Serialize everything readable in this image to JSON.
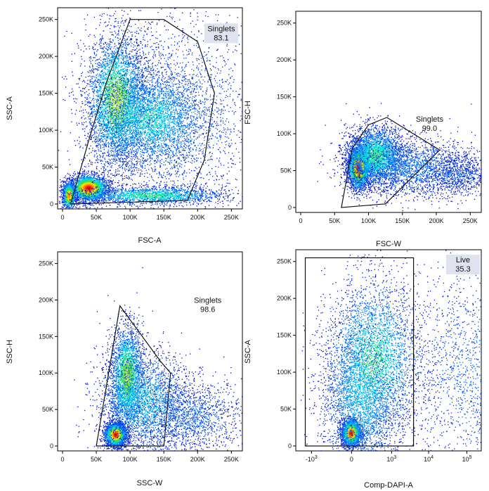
{
  "chart_data": [
    {
      "type": "scatter",
      "name": "FSC-A vs SSC-A",
      "xlabel": "FSC-A",
      "ylabel": "SSC-A",
      "xscale": "linear",
      "yscale": "linear",
      "xlim": [
        0,
        262144
      ],
      "ylim": [
        0,
        262144
      ],
      "xticks": [
        {
          "v": 0,
          "t": "0"
        },
        {
          "v": 50000,
          "t": "50K"
        },
        {
          "v": 100000,
          "t": "100K"
        },
        {
          "v": 150000,
          "t": "150K"
        },
        {
          "v": 200000,
          "t": "200K"
        },
        {
          "v": 250000,
          "t": "250K"
        }
      ],
      "yticks": [
        {
          "v": 0,
          "t": "0"
        },
        {
          "v": 50000,
          "t": "50K"
        },
        {
          "v": 100000,
          "t": "100K"
        },
        {
          "v": 150000,
          "t": "150K"
        },
        {
          "v": 200000,
          "t": "200K"
        },
        {
          "v": 250000,
          "t": "250K"
        }
      ],
      "gate": {
        "label": "Singlets",
        "value": "83.1",
        "label_box": true,
        "label_anchor": [
          235000,
          238000
        ],
        "polygon": [
          [
            12000,
            0
          ],
          [
            40000,
            90000
          ],
          [
            65000,
            165000
          ],
          [
            100000,
            250000
          ],
          [
            150000,
            250000
          ],
          [
            200000,
            220000
          ],
          [
            225000,
            150000
          ],
          [
            210000,
            60000
          ],
          [
            185000,
            5000
          ]
        ]
      },
      "populations": [
        {
          "x": 38000,
          "y": 22000,
          "sx": 14000,
          "sy": 9000,
          "n": 2600,
          "w": 1.0
        },
        {
          "x": 9000,
          "y": 12000,
          "sx": 5000,
          "sy": 9000,
          "n": 1000,
          "w": 0.9
        },
        {
          "x": 80000,
          "y": 140000,
          "sx": 22000,
          "sy": 45000,
          "n": 3800,
          "w": 0.7
        },
        {
          "x": 130000,
          "y": 115000,
          "sx": 38000,
          "sy": 32000,
          "n": 3000,
          "w": 0.5
        },
        {
          "x": 130000,
          "y": 12000,
          "sx": 55000,
          "sy": 6000,
          "n": 1800,
          "w": 0.55
        },
        {
          "x": 160000,
          "y": 120000,
          "sx": 65000,
          "sy": 70000,
          "n": 2600,
          "w": 0.25
        }
      ]
    },
    {
      "type": "scatter",
      "name": "FSC-W vs FSC-H",
      "xlabel": "FSC-W",
      "ylabel": "FSC-H",
      "xscale": "linear",
      "yscale": "linear",
      "xlim": [
        0,
        262144
      ],
      "ylim": [
        0,
        262144
      ],
      "xticks": [
        {
          "v": 0,
          "t": "0"
        },
        {
          "v": 50000,
          "t": "50K"
        },
        {
          "v": 100000,
          "t": "100K"
        },
        {
          "v": 150000,
          "t": "150K"
        },
        {
          "v": 200000,
          "t": "200K"
        },
        {
          "v": 250000,
          "t": "250K"
        }
      ],
      "yticks": [
        {
          "v": 0,
          "t": "0"
        },
        {
          "v": 50000,
          "t": "50K"
        },
        {
          "v": 100000,
          "t": "100K"
        },
        {
          "v": 150000,
          "t": "150K"
        },
        {
          "v": 200000,
          "t": "200K"
        },
        {
          "v": 250000,
          "t": "250K"
        }
      ],
      "gate": {
        "label": "Singlets",
        "value": "99.0",
        "label_box": false,
        "label_anchor": [
          190000,
          120000
        ],
        "polygon": [
          [
            60000,
            0
          ],
          [
            76000,
            80000
          ],
          [
            100000,
            112000
          ],
          [
            127000,
            122000
          ],
          [
            205000,
            78000
          ],
          [
            125000,
            5000
          ]
        ]
      },
      "populations": [
        {
          "x": 85000,
          "y": 55000,
          "sx": 8000,
          "sy": 15000,
          "n": 2600,
          "w": 1.0
        },
        {
          "x": 110000,
          "y": 70000,
          "sx": 22000,
          "sy": 20000,
          "n": 3000,
          "w": 0.55
        },
        {
          "x": 165000,
          "y": 55000,
          "sx": 45000,
          "sy": 20000,
          "n": 1800,
          "w": 0.25
        },
        {
          "x": 230000,
          "y": 45000,
          "sx": 25000,
          "sy": 15000,
          "n": 800,
          "w": 0.15
        }
      ]
    },
    {
      "type": "scatter",
      "name": "SSC-W vs SSC-H",
      "xlabel": "SSC-W",
      "ylabel": "SSC-H",
      "xscale": "linear",
      "yscale": "linear",
      "xlim": [
        0,
        262144
      ],
      "ylim": [
        0,
        262144
      ],
      "xticks": [
        {
          "v": 0,
          "t": "0"
        },
        {
          "v": 50000,
          "t": "50K"
        },
        {
          "v": 100000,
          "t": "100K"
        },
        {
          "v": 150000,
          "t": "150K"
        },
        {
          "v": 200000,
          "t": "200K"
        },
        {
          "v": 250000,
          "t": "250K"
        }
      ],
      "yticks": [
        {
          "v": 0,
          "t": "0"
        },
        {
          "v": 50000,
          "t": "50K"
        },
        {
          "v": 100000,
          "t": "100K"
        },
        {
          "v": 150000,
          "t": "150K"
        },
        {
          "v": 200000,
          "t": "200K"
        },
        {
          "v": 250000,
          "t": "250K"
        }
      ],
      "gate": {
        "label": "Singlets",
        "value": "98.6",
        "label_box": false,
        "label_anchor": [
          215000,
          200000
        ],
        "polygon": [
          [
            50000,
            0
          ],
          [
            85000,
            192000
          ],
          [
            145000,
            116000
          ],
          [
            160000,
            100000
          ],
          [
            150000,
            0
          ]
        ]
      },
      "populations": [
        {
          "x": 78000,
          "y": 16000,
          "sx": 8000,
          "sy": 8000,
          "n": 2400,
          "w": 1.0
        },
        {
          "x": 95000,
          "y": 95000,
          "sx": 12000,
          "sy": 35000,
          "n": 2600,
          "w": 0.7
        },
        {
          "x": 120000,
          "y": 60000,
          "sx": 35000,
          "sy": 35000,
          "n": 2600,
          "w": 0.4
        },
        {
          "x": 190000,
          "y": 40000,
          "sx": 40000,
          "sy": 25000,
          "n": 1400,
          "w": 0.2
        }
      ]
    },
    {
      "type": "scatter",
      "name": "Comp-DAPI-A vs SSC-A",
      "xlabel": "Comp-DAPI-A",
      "ylabel": "SSC-A",
      "xscale": "biexponential",
      "yscale": "linear",
      "xlim": [
        -2000,
        200000
      ],
      "ylim": [
        0,
        262144
      ],
      "xticks": [
        {
          "v": -1000,
          "t": "-10",
          "sup": "3"
        },
        {
          "v": 0,
          "t": "0"
        },
        {
          "v": 1000,
          "t": "10",
          "sup": "3"
        },
        {
          "v": 10000,
          "t": "10",
          "sup": "4"
        },
        {
          "v": 100000,
          "t": "10",
          "sup": "5"
        }
      ],
      "yticks": [
        {
          "v": 0,
          "t": "0"
        },
        {
          "v": 50000,
          "t": "50K"
        },
        {
          "v": 100000,
          "t": "100K"
        },
        {
          "v": 150000,
          "t": "150K"
        },
        {
          "v": 200000,
          "t": "200K"
        },
        {
          "v": 250000,
          "t": "250K"
        }
      ],
      "gate": {
        "label": "Live",
        "value": "35.3",
        "label_box": true,
        "label_anchor": [
          -100,
          250000
        ],
        "rect_x": [
          -1500,
          4000
        ],
        "rect_y": [
          0,
          255000
        ]
      },
      "populations": [
        {
          "xd": -0.02,
          "y": 18000,
          "sxd": 0.12,
          "sy": 9000,
          "n": 2200,
          "w": 1.0
        },
        {
          "xd": 0.55,
          "y": 115000,
          "sxd": 0.6,
          "sy": 55000,
          "n": 3600,
          "w": 0.55
        },
        {
          "xd": 0.2,
          "y": 60000,
          "sxd": 0.5,
          "sy": 50000,
          "n": 2200,
          "w": 0.4
        },
        {
          "xd": 5.0,
          "y": 110000,
          "sxd": 0.1,
          "sy": 65000,
          "n": 3000,
          "w": 0.65
        },
        {
          "xd": 5.0,
          "y": 20000,
          "sxd": 0.1,
          "sy": 10000,
          "n": 1000,
          "w": 0.9
        },
        {
          "xd": 3.2,
          "y": 100000,
          "sxd": 0.9,
          "sy": 70000,
          "n": 1800,
          "w": 0.2
        }
      ]
    }
  ]
}
